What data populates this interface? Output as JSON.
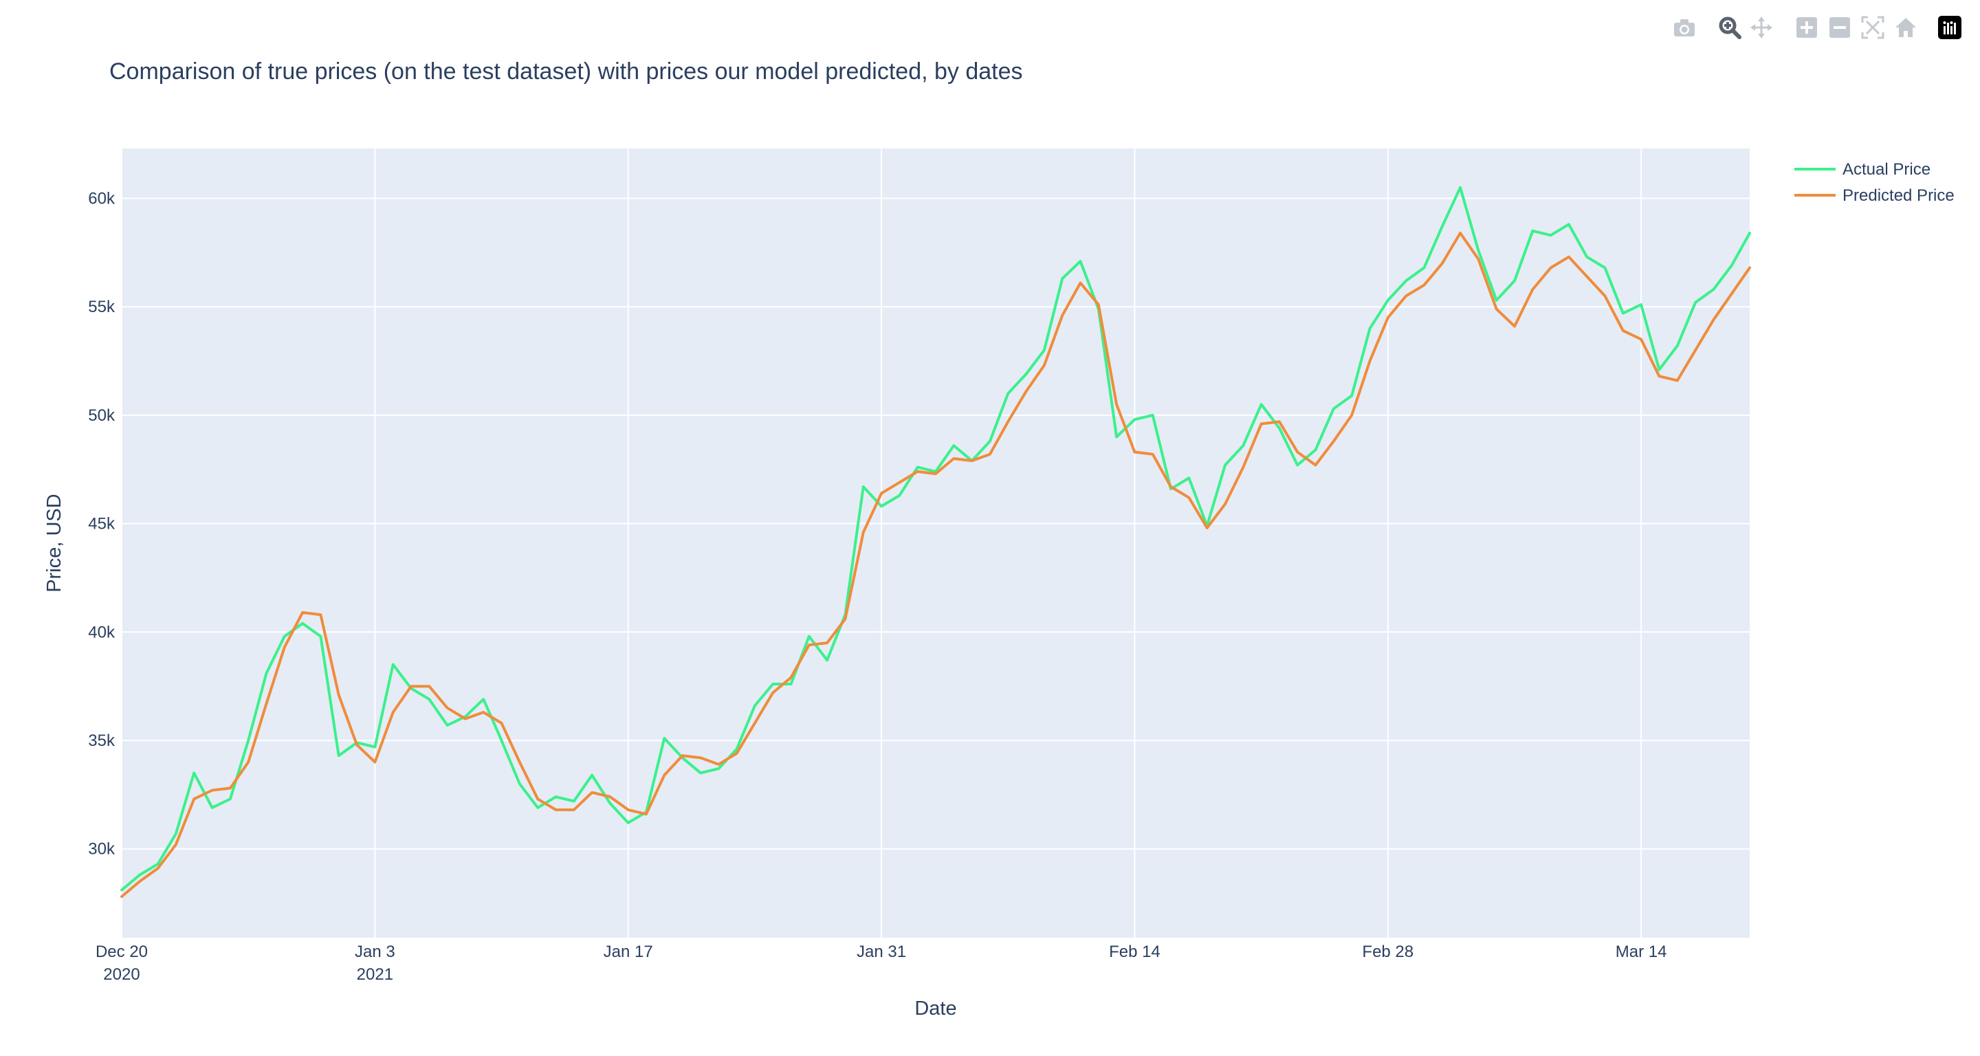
{
  "modebar": {
    "buttons": [
      {
        "name": "camera-icon",
        "title": "Download plot as a png"
      },
      {
        "name": "zoom-icon",
        "title": "Zoom"
      },
      {
        "name": "pan-icon",
        "title": "Pan"
      },
      {
        "name": "zoom-in-icon",
        "title": "Zoom in"
      },
      {
        "name": "zoom-out-icon",
        "title": "Zoom out"
      },
      {
        "name": "autoscale-icon",
        "title": "Autoscale"
      },
      {
        "name": "reset-axes-icon",
        "title": "Reset axes"
      },
      {
        "name": "plotly-logo-icon",
        "title": "Produced with Plotly"
      }
    ],
    "active": "zoom-icon"
  },
  "chart_data": {
    "type": "line",
    "title": "Comparison of true prices (on the test dataset) with prices our model predicted, by dates",
    "xlabel": "Date",
    "ylabel": "Price, USD",
    "x_start": "2020-12-20",
    "x_step_days": 1,
    "xlim": [
      "2020-12-20",
      "2021-03-20"
    ],
    "ylim": [
      25900,
      62300
    ],
    "x_ticks": [
      {
        "date": "2020-12-20",
        "label": "Dec 20",
        "sublabel": "2020"
      },
      {
        "date": "2021-01-03",
        "label": "Jan 3",
        "sublabel": "2021"
      },
      {
        "date": "2021-01-17",
        "label": "Jan 17",
        "sublabel": ""
      },
      {
        "date": "2021-01-31",
        "label": "Jan 31",
        "sublabel": ""
      },
      {
        "date": "2021-02-14",
        "label": "Feb 14",
        "sublabel": ""
      },
      {
        "date": "2021-02-28",
        "label": "Feb 28",
        "sublabel": ""
      },
      {
        "date": "2021-03-14",
        "label": "Mar 14",
        "sublabel": ""
      }
    ],
    "y_ticks": [
      {
        "value": 30000,
        "label": "30k"
      },
      {
        "value": 35000,
        "label": "35k"
      },
      {
        "value": 40000,
        "label": "40k"
      },
      {
        "value": 45000,
        "label": "45k"
      },
      {
        "value": 50000,
        "label": "50k"
      },
      {
        "value": 55000,
        "label": "55k"
      },
      {
        "value": 60000,
        "label": "60k"
      }
    ],
    "grid": true,
    "legend_position": "top-right",
    "plot_bgcolor": "#e5ecf6",
    "series": [
      {
        "name": "Actual Price",
        "color": "#3cf08c",
        "values": [
          28100,
          28800,
          29300,
          30700,
          33500,
          31900,
          32300,
          35000,
          38100,
          39800,
          40400,
          39800,
          34300,
          34900,
          34700,
          38500,
          37400,
          36900,
          35700,
          36100,
          36900,
          35000,
          33000,
          31900,
          32400,
          32200,
          33400,
          32100,
          31200,
          31700,
          35100,
          34200,
          33500,
          33700,
          34600,
          36600,
          37600,
          37600,
          39800,
          38700,
          40800,
          46700,
          45800,
          46300,
          47600,
          47400,
          48600,
          47900,
          48800,
          51000,
          51900,
          53000,
          56300,
          57100,
          54900,
          49000,
          49800,
          50000,
          46600,
          47100,
          44900,
          47700,
          48600,
          50500,
          49400,
          47700,
          48400,
          50300,
          50900,
          54000,
          55300,
          56200,
          56800,
          58700,
          60500,
          57600,
          55300,
          56200,
          58500,
          58300,
          58800,
          57300,
          56800,
          54700,
          55100,
          52100,
          53200,
          55200,
          55800,
          56900,
          58400
        ]
      },
      {
        "name": "Predicted Price",
        "color": "#f08c3c",
        "values": [
          27800,
          28500,
          29100,
          30200,
          32300,
          32700,
          32800,
          34000,
          36700,
          39300,
          40900,
          40800,
          37100,
          34800,
          34000,
          36300,
          37500,
          37500,
          36500,
          36000,
          36300,
          35800,
          34000,
          32300,
          31800,
          31800,
          32600,
          32400,
          31800,
          31600,
          33400,
          34300,
          34200,
          33900,
          34400,
          35800,
          37200,
          37900,
          39400,
          39500,
          40600,
          44600,
          46400,
          46900,
          47400,
          47300,
          48000,
          47900,
          48200,
          49700,
          51100,
          52300,
          54600,
          56100,
          55100,
          50500,
          48300,
          48200,
          46700,
          46200,
          44800,
          45900,
          47600,
          49600,
          49700,
          48300,
          47700,
          48800,
          50000,
          52500,
          54500,
          55500,
          56000,
          57000,
          58400,
          57200,
          54900,
          54100,
          55800,
          56800,
          57300,
          56400,
          55500,
          53900,
          53500,
          51800,
          51600,
          53000,
          54400,
          55600,
          56800
        ]
      }
    ]
  }
}
